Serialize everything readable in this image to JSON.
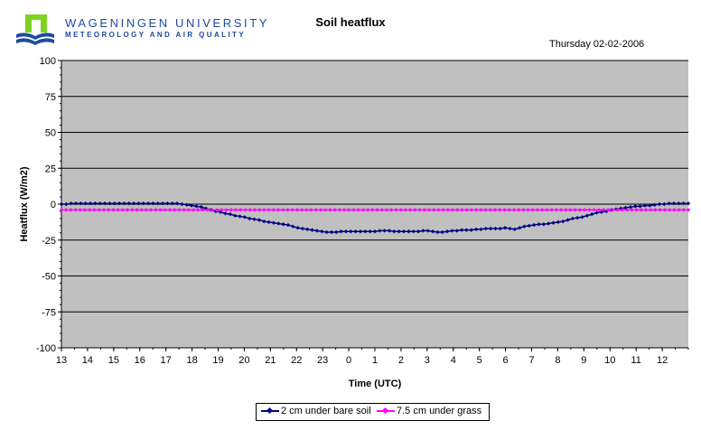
{
  "header": {
    "org_name": "WAGENINGEN UNIVERSITY",
    "org_dept": "METEOROLOGY AND AIR QUALITY",
    "date": "Thursday 02-02-2006"
  },
  "colors": {
    "plot_background": "#c0c0c0",
    "logo_blue": "#1f4aa0",
    "logo_green": "#7ed321"
  },
  "chart_data": {
    "type": "line",
    "title": "Soil heatflux",
    "xlabel": "Time (UTC)",
    "ylabel": "Heatflux (W/m2)",
    "ylim": [
      -100,
      100
    ],
    "y_ticks": [
      100,
      75,
      50,
      25,
      0,
      -25,
      -50,
      -75,
      -100
    ],
    "x_tick_labels": [
      "13",
      "14",
      "15",
      "16",
      "17",
      "18",
      "19",
      "20",
      "21",
      "22",
      "23",
      "0",
      "1",
      "2",
      "3",
      "4",
      "5",
      "6",
      "7",
      "8",
      "9",
      "10",
      "11",
      "12"
    ],
    "grid": "horizontal",
    "legend_position": "bottom-center",
    "x_start_hour": 13,
    "x_step_hours": 0.1667,
    "series": [
      {
        "name": "2 cm under bare soil",
        "color": "#000080",
        "marker": "diamond",
        "values": [
          0,
          0,
          0.5,
          0.5,
          0.5,
          0.5,
          0.5,
          0.5,
          0.5,
          0.5,
          0.5,
          0.5,
          0.5,
          0.5,
          0.5,
          0.5,
          0.5,
          0.5,
          0.5,
          0.5,
          0.5,
          0.5,
          0.5,
          0.5,
          0.5,
          0,
          -0.5,
          -1,
          -1.5,
          -2,
          -3,
          -4,
          -5,
          -5.5,
          -6.5,
          -7,
          -8,
          -8.5,
          -9,
          -10,
          -10.5,
          -11,
          -12,
          -12.5,
          -13,
          -13.5,
          -14,
          -14.5,
          -15.5,
          -16.5,
          -17,
          -17.5,
          -18,
          -18.5,
          -19,
          -19.5,
          -19.5,
          -19.5,
          -19,
          -19,
          -19,
          -19,
          -19,
          -19,
          -19,
          -19,
          -18.5,
          -18.5,
          -18.5,
          -19,
          -19,
          -19,
          -19,
          -19,
          -19,
          -18.5,
          -18.5,
          -19,
          -19.5,
          -19.5,
          -19,
          -18.5,
          -18.5,
          -18,
          -18,
          -18,
          -17.5,
          -17.5,
          -17,
          -17,
          -17,
          -17,
          -16.5,
          -17,
          -17.5,
          -16.5,
          -15.5,
          -15,
          -14.5,
          -14,
          -14,
          -13.5,
          -13,
          -12.5,
          -12,
          -11,
          -10,
          -9.5,
          -9,
          -8,
          -7,
          -6,
          -5.5,
          -5,
          -4,
          -3.5,
          -3,
          -2.5,
          -2,
          -1.5,
          -1.5,
          -1,
          -1,
          -0.5,
          0,
          0,
          0.5,
          0.5,
          0.5,
          0.5,
          0.5
        ]
      },
      {
        "name": "7.5 cm under grass",
        "color": "#ff00ff",
        "marker": "diamond",
        "values": [
          -4,
          -4,
          -4,
          -4,
          -4,
          -4,
          -4,
          -4,
          -4,
          -4,
          -4,
          -4,
          -4,
          -4,
          -4,
          -4,
          -4,
          -4,
          -4,
          -4,
          -4,
          -4,
          -4,
          -4,
          -4,
          -4,
          -4,
          -4,
          -4,
          -4,
          -4,
          -4,
          -4,
          -4,
          -4,
          -4,
          -4,
          -4,
          -4,
          -4,
          -4,
          -4,
          -4,
          -4,
          -4,
          -4,
          -4,
          -4,
          -4,
          -4,
          -4,
          -4,
          -4,
          -4,
          -4,
          -4,
          -4,
          -4,
          -4,
          -4,
          -4,
          -4,
          -4,
          -4,
          -4,
          -4,
          -4,
          -4,
          -4,
          -4,
          -4,
          -4,
          -4,
          -4,
          -4,
          -4,
          -4,
          -4,
          -4,
          -4,
          -4,
          -4,
          -4,
          -4,
          -4,
          -4,
          -4,
          -4,
          -4,
          -4,
          -4,
          -4,
          -4,
          -4,
          -4,
          -4,
          -4,
          -4,
          -4,
          -4,
          -4,
          -4,
          -4,
          -4,
          -4,
          -4,
          -4,
          -4,
          -4,
          -4,
          -4,
          -4,
          -4,
          -4,
          -4,
          -4,
          -4,
          -4,
          -4,
          -4,
          -4,
          -4,
          -4,
          -4,
          -4,
          -4,
          -4,
          -4,
          -4,
          -4,
          -4,
          -4,
          -4,
          -4
        ]
      }
    ]
  }
}
